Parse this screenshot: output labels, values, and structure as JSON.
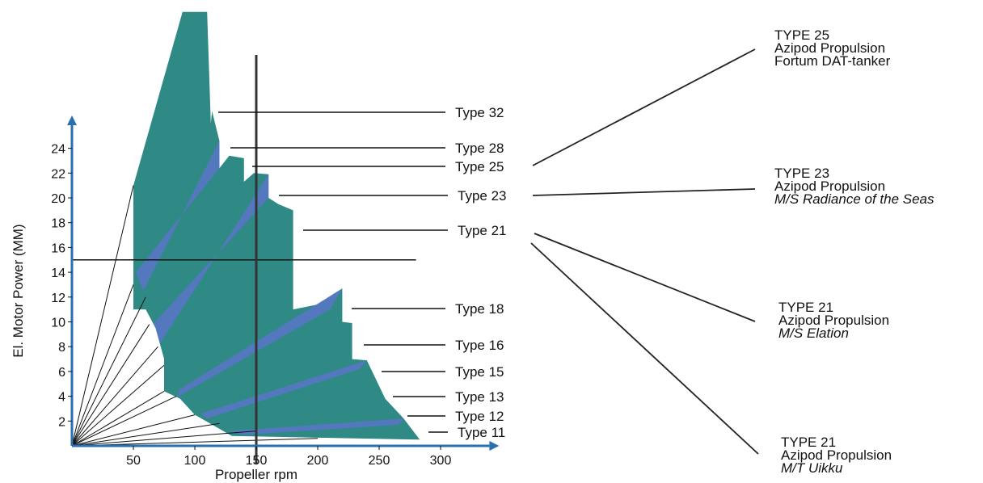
{
  "chart_data": {
    "type": "area",
    "xlabel": "Propeller rpm",
    "ylabel": "El. Motor Power (MM)",
    "xlim": [
      0,
      320
    ],
    "ylim": [
      0,
      25
    ],
    "x_ticks": [
      50,
      100,
      150,
      200,
      250,
      300
    ],
    "y_ticks": [
      2,
      4,
      6,
      8,
      10,
      12,
      14,
      16,
      18,
      20,
      22,
      24
    ],
    "colors": {
      "teal": "#2f8a85",
      "blue": "#5a74c8",
      "line": "#111111"
    },
    "series": [
      {
        "name": "Type 32",
        "label": "Type 32",
        "color": "#2f8a85",
        "top": [
          [
            50,
            21
          ],
          [
            90,
            35
          ],
          [
            110,
            35
          ],
          [
            113,
            26
          ]
        ]
      },
      {
        "name": "Type 28",
        "label": "Type 28",
        "color": "#5a74c8",
        "top": [
          [
            120,
            24.6
          ]
        ]
      },
      {
        "name": "Type 25",
        "label": "Type 25",
        "color": "#2f8a85",
        "top": [
          [
            140,
            23.2
          ]
        ]
      },
      {
        "name": "Type 23",
        "label": "Type 23",
        "color": "#5a74c8",
        "top": [
          [
            160,
            21.9
          ]
        ]
      },
      {
        "name": "Type 21",
        "label": "Type 21",
        "color": "#2f8a85",
        "top": [
          [
            180,
            19
          ]
        ]
      },
      {
        "name": "Type 18",
        "label": "Type 18",
        "color": "#5a74c8",
        "top": [
          [
            220,
            12.7
          ]
        ]
      },
      {
        "name": "Type 16",
        "label": "Type 16",
        "color": "#2f8a85",
        "top": [
          [
            228,
            9.9
          ]
        ]
      },
      {
        "name": "Type 15",
        "label": "Type 15",
        "color": "#5a74c8",
        "top": [
          [
            240,
            6.9
          ]
        ]
      },
      {
        "name": "Type 13",
        "label": "Type 13",
        "color": "#2f8a85",
        "top": [
          [
            255,
            3.8
          ]
        ]
      },
      {
        "name": "Type 12",
        "label": "Type 12",
        "color": "#5a74c8",
        "top": [
          [
            270,
            2.2
          ]
        ]
      },
      {
        "name": "Type 11",
        "label": "Type 11",
        "color": "#2f8a85",
        "top": [
          [
            283,
            0.5
          ]
        ]
      }
    ],
    "reference_lines": {
      "x": 150,
      "y": 15
    },
    "annotations": [
      {
        "lines": [
          "TYPE 25",
          "Azipod Propulsion",
          "Fortum DAT-tanker"
        ]
      },
      {
        "lines": [
          "TYPE 23",
          "Azipod Propulsion",
          "M/S Radiance of the Seas"
        ]
      },
      {
        "lines": [
          "TYPE 21",
          "Azipod Propulsion",
          "M/S Elation"
        ]
      },
      {
        "lines": [
          "TYPE 21",
          "Azipod Propulsion",
          "M/T Uikku"
        ]
      }
    ]
  }
}
